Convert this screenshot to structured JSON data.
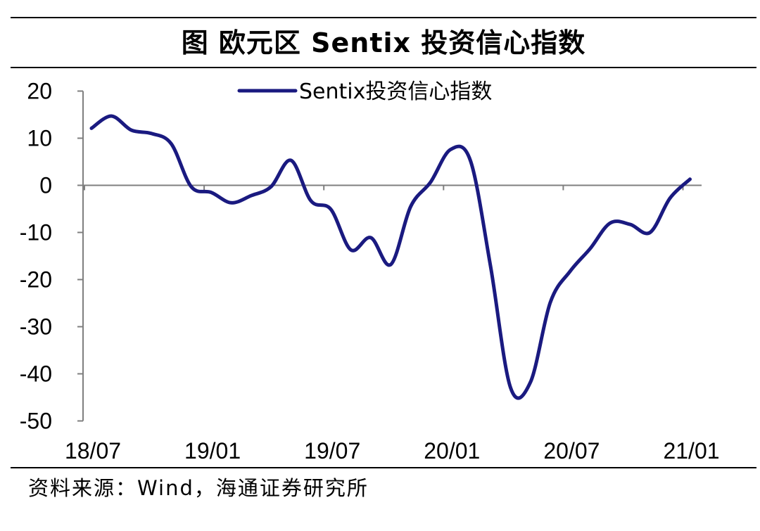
{
  "header": {
    "title": "图  欧元区 Sentix 投资信心指数"
  },
  "footer": {
    "source": "资料来源：Wind，海通证券研究所"
  },
  "chart_data": {
    "type": "line",
    "title": "图  欧元区 Sentix 投资信心指数",
    "xlabel": "",
    "ylabel": "",
    "ylim": [
      -50,
      20
    ],
    "yticks": [
      20,
      10,
      0,
      -10,
      -20,
      -30,
      -40,
      -50
    ],
    "xtick_labels": [
      "18/07",
      "19/01",
      "19/07",
      "20/01",
      "20/07",
      "21/01"
    ],
    "legend_position": "top-center",
    "grid": false,
    "line_color": "#1a1a80",
    "series": [
      {
        "name": "Sentix投资信心指数",
        "x": [
          "2018-07",
          "2018-08",
          "2018-09",
          "2018-10",
          "2018-11",
          "2018-12",
          "2019-01",
          "2019-02",
          "2019-03",
          "2019-04",
          "2019-05",
          "2019-06",
          "2019-07",
          "2019-08",
          "2019-09",
          "2019-10",
          "2019-11",
          "2019-12",
          "2020-01",
          "2020-02",
          "2020-03",
          "2020-04",
          "2020-05",
          "2020-06",
          "2020-07",
          "2020-08",
          "2020-09",
          "2020-10",
          "2020-11",
          "2020-12",
          "2021-01"
        ],
        "values": [
          12.1,
          14.7,
          11.7,
          11.0,
          8.8,
          -0.3,
          -1.5,
          -3.7,
          -2.2,
          -0.3,
          5.3,
          -3.3,
          -5.1,
          -13.7,
          -11.1,
          -16.8,
          -4.5,
          0.7,
          7.6,
          5.2,
          -17.1,
          -42.9,
          -41.8,
          -24.8,
          -18.2,
          -13.4,
          -8.0,
          -8.3,
          -10.0,
          -2.7,
          1.3
        ]
      }
    ]
  }
}
